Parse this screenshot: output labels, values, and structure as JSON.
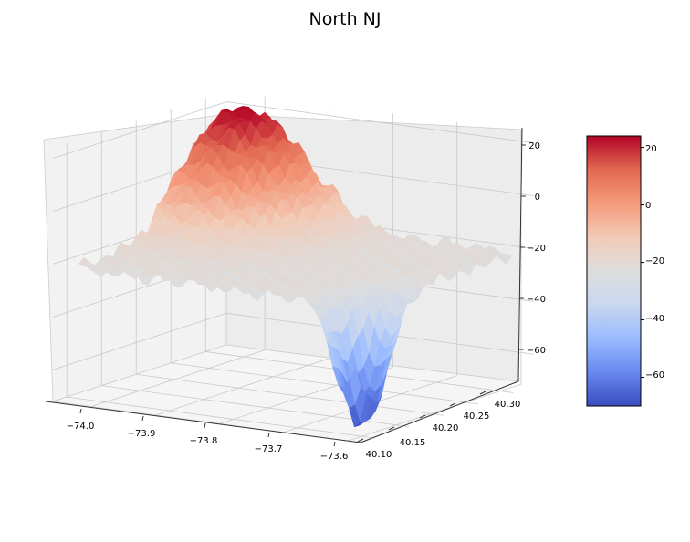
{
  "chart_data": {
    "type": "surface3d",
    "title": "North NJ",
    "colormap": "coolwarm",
    "colormap_stops": [
      "#3b4cc0",
      "#6788ee",
      "#9abbff",
      "#c9d7f0",
      "#dddddd",
      "#f2cbb7",
      "#f49a7b",
      "#e26952",
      "#b40426"
    ],
    "xlabel": "",
    "ylabel": "",
    "zlabel": "",
    "x_axis": {
      "ticks": [
        -74.0,
        -73.9,
        -73.8,
        -73.7,
        -73.6
      ],
      "tick_labels": [
        "−74.0",
        "−73.9",
        "−73.8",
        "−73.7",
        "−73.6"
      ],
      "range": [
        -74.06,
        -73.58
      ]
    },
    "y_axis": {
      "ticks": [
        40.1,
        40.15,
        40.2,
        40.25,
        40.3
      ],
      "tick_labels": [
        "40.10",
        "40.15",
        "40.20",
        "40.25",
        "40.30"
      ],
      "range": [
        40.08,
        40.33
      ]
    },
    "z_axis": {
      "ticks": [
        20,
        0,
        -20,
        -40,
        -60
      ],
      "tick_labels": [
        "20",
        "0",
        "−20",
        "−40",
        "−60"
      ],
      "range": [
        -72,
        24
      ]
    },
    "colorbar": {
      "ticks": [
        20,
        0,
        -20,
        -40,
        -60
      ],
      "tick_labels": [
        "20",
        "0",
        "−20",
        "−40",
        "−60"
      ],
      "range": [
        -70,
        24
      ]
    },
    "surface_summary": {
      "z_min": -70,
      "z_max": 24,
      "peak_near": {
        "x": -73.98,
        "y": 40.28,
        "z": 24
      },
      "trough_near": {
        "x": -73.62,
        "y": 40.12,
        "z": -70
      },
      "typical_value": -22
    }
  }
}
